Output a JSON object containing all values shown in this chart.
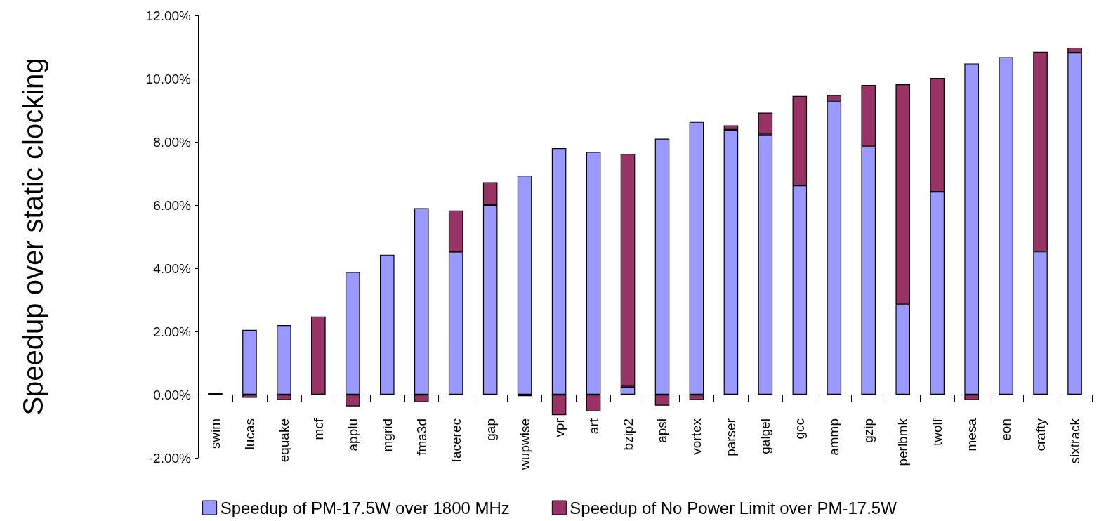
{
  "chart_data": {
    "type": "bar",
    "stacked": true,
    "ylabel": "Speedup over static clocking",
    "categories": [
      "swim",
      "lucas",
      "equake",
      "mcf",
      "applu",
      "mgrid",
      "fma3d",
      "facerec",
      "gap",
      "wupwise",
      "vpr",
      "art",
      "bzip2",
      "apsi",
      "vortex",
      "parser",
      "galgel",
      "gcc",
      "ammp",
      "gzip",
      "perlbmk",
      "twolf",
      "mesa",
      "eon",
      "crafty",
      "sixtrack"
    ],
    "series": [
      {
        "name": "Speedup of PM-17.5W over 1800 MHz",
        "color": "#9999ff",
        "values": [
          0.05,
          2.05,
          2.2,
          null,
          3.88,
          4.43,
          5.9,
          4.5,
          6.0,
          6.93,
          7.8,
          7.68,
          0.25,
          8.1,
          8.63,
          8.38,
          8.23,
          6.62,
          9.3,
          7.85,
          2.85,
          6.42,
          10.48,
          10.68,
          4.53,
          10.82
        ]
      },
      {
        "name": "Speedup of No Power Limit over PM-17.5W",
        "color": "#993366",
        "values": [
          null,
          -0.1,
          -0.17,
          2.47,
          -0.37,
          null,
          -0.24,
          1.33,
          0.72,
          -0.05,
          -0.65,
          -0.53,
          7.37,
          -0.35,
          -0.17,
          0.14,
          0.69,
          2.83,
          0.18,
          1.95,
          6.97,
          3.6,
          -0.17,
          null,
          6.32,
          0.16
        ]
      }
    ],
    "ylim": [
      -2,
      12
    ],
    "yticks": [
      {
        "value": -2,
        "label": "-2.00%"
      },
      {
        "value": 0,
        "label": "0.00%"
      },
      {
        "value": 2,
        "label": "2.00%"
      },
      {
        "value": 4,
        "label": "4.00%"
      },
      {
        "value": 6,
        "label": "6.00%"
      },
      {
        "value": 8,
        "label": "8.00%"
      },
      {
        "value": 10,
        "label": "10.00%"
      },
      {
        "value": 12,
        "label": "12.00%"
      }
    ],
    "legend": "bottom"
  }
}
